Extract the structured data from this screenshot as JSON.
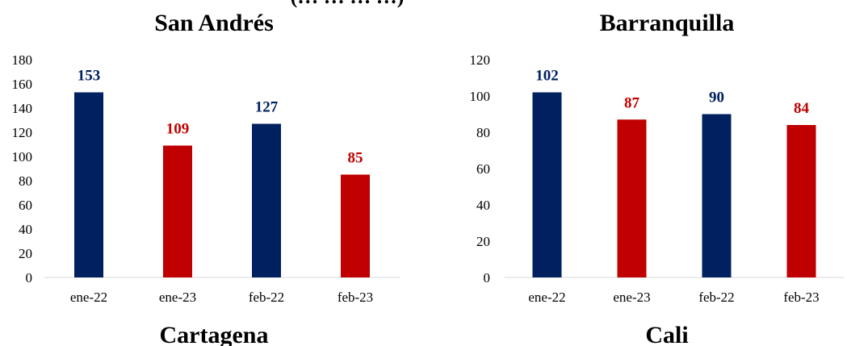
{
  "header_fragment": "(… … … …)",
  "chart_data": [
    {
      "type": "bar",
      "title": "San Andrés",
      "categories": [
        "ene-22",
        "ene-23",
        "feb-22",
        "feb-23"
      ],
      "values": [
        153,
        109,
        127,
        85
      ],
      "bar_colors": [
        "#002060",
        "#C00000",
        "#002060",
        "#C00000"
      ],
      "ylim": [
        0,
        180
      ],
      "yticks": [
        0,
        20,
        40,
        60,
        80,
        100,
        120,
        140,
        160,
        180
      ],
      "grid": false,
      "legend": "none"
    },
    {
      "type": "bar",
      "title": "Barranquilla",
      "categories": [
        "ene-22",
        "ene-23",
        "feb-22",
        "feb-23"
      ],
      "values": [
        102,
        87,
        90,
        84
      ],
      "bar_colors": [
        "#002060",
        "#C00000",
        "#002060",
        "#C00000"
      ],
      "ylim": [
        0,
        120
      ],
      "yticks": [
        0,
        20,
        40,
        60,
        80,
        100,
        120
      ],
      "grid": false,
      "legend": "none"
    },
    {
      "type": "bar",
      "title": "Cartagena",
      "categories": [],
      "values": []
    },
    {
      "type": "bar",
      "title": "Cali",
      "categories": [],
      "values": []
    }
  ]
}
